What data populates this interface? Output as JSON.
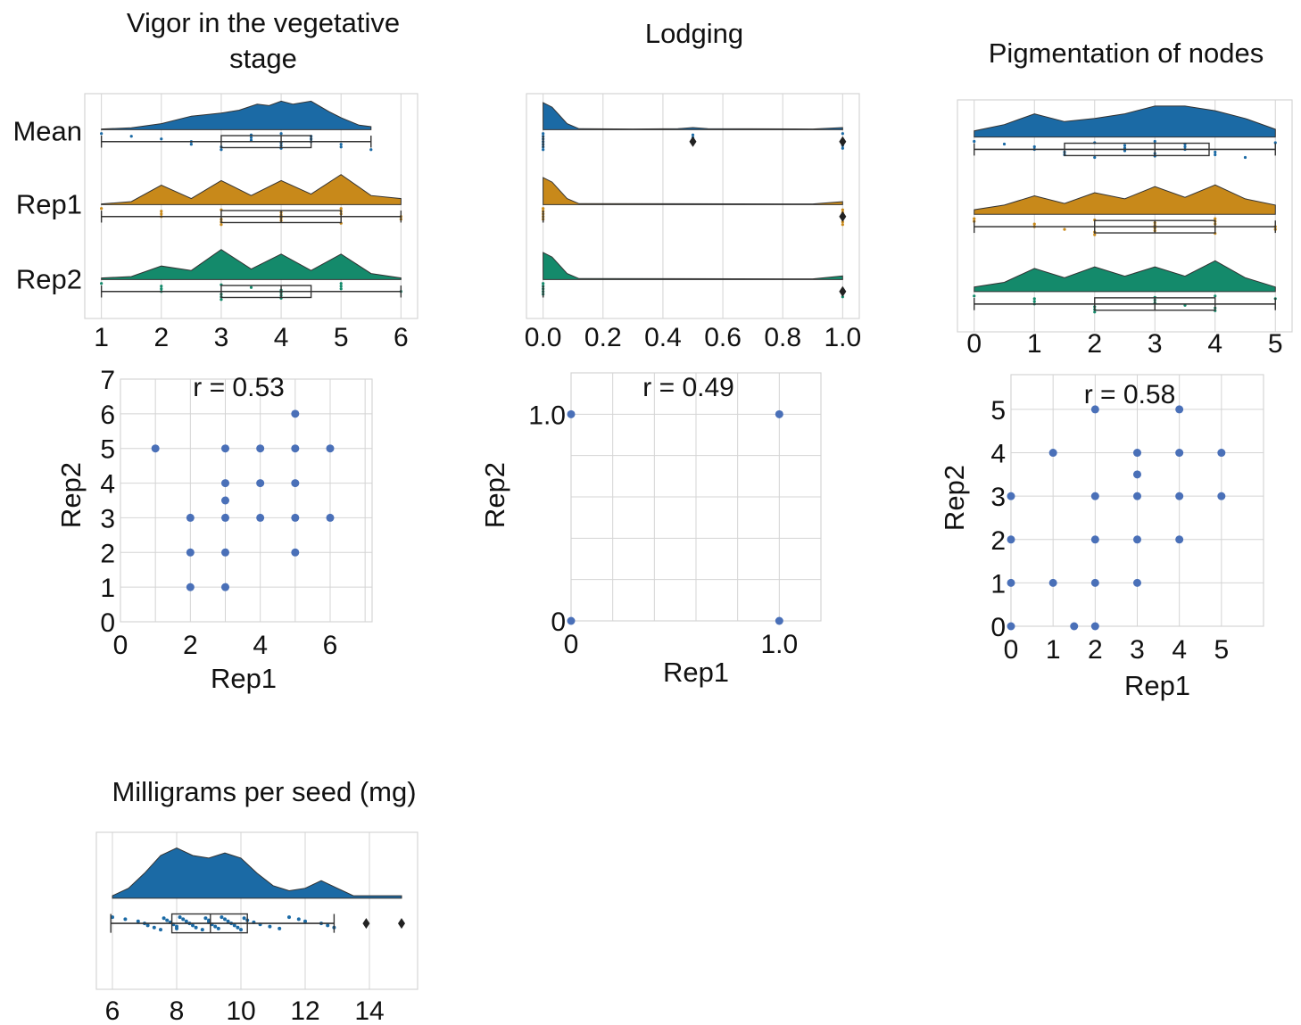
{
  "figure": {
    "category_labels": [
      "Mean",
      "Rep1",
      "Rep2"
    ]
  },
  "colors": {
    "mean": "#1b6aa5",
    "rep1": "#c8891a",
    "rep2": "#148a6b",
    "scatter": "#4a70b8",
    "grid": "#d4d4d4",
    "box": "#ffffff",
    "outlier": "#222222"
  },
  "chart_data": [
    {
      "type": "raincloud",
      "title_lines": [
        "Vigor in the vegetative",
        "stage"
      ],
      "xticks": [
        "1",
        "2",
        "3",
        "4",
        "5",
        "6"
      ],
      "xlim": [
        1,
        6
      ],
      "grid": true,
      "series": [
        {
          "name": "Mean",
          "color": "mean",
          "density": [
            [
              1,
              0.02
            ],
            [
              1.5,
              0.06
            ],
            [
              2,
              0.2
            ],
            [
              2.5,
              0.45
            ],
            [
              3,
              0.55
            ],
            [
              3.3,
              0.65
            ],
            [
              3.6,
              0.85
            ],
            [
              3.8,
              0.8
            ],
            [
              4,
              0.95
            ],
            [
              4.2,
              0.85
            ],
            [
              4.5,
              0.95
            ],
            [
              4.8,
              0.6
            ],
            [
              5,
              0.4
            ],
            [
              5.3,
              0.15
            ],
            [
              5.5,
              0.1
            ]
          ],
          "box": {
            "whisker_low": 1,
            "q1": 3,
            "median": 4,
            "q3": 4.5,
            "whisker_high": 5.5
          },
          "points": [
            1,
            1.5,
            2,
            2.5,
            2.5,
            3,
            3,
            3.5,
            3.5,
            3.5,
            4,
            4,
            4,
            4,
            4.5,
            4.5,
            4.5,
            5,
            5,
            5.5
          ],
          "outliers": []
        },
        {
          "name": "Rep1",
          "color": "rep1",
          "density": [
            [
              1,
              0.02
            ],
            [
              1.5,
              0.1
            ],
            [
              2,
              0.65
            ],
            [
              2.5,
              0.2
            ],
            [
              3,
              0.8
            ],
            [
              3.5,
              0.3
            ],
            [
              4,
              0.8
            ],
            [
              4.5,
              0.35
            ],
            [
              5,
              1
            ],
            [
              5.5,
              0.3
            ],
            [
              6,
              0.2
            ]
          ],
          "box": {
            "whisker_low": 1,
            "q1": 3,
            "median": 4,
            "q3": 5,
            "whisker_high": 6
          },
          "points": [
            1,
            2,
            2,
            2,
            3,
            3,
            3,
            3,
            4,
            4,
            4,
            4,
            5,
            5,
            5,
            5,
            6,
            6
          ],
          "outliers": []
        },
        {
          "name": "Rep2",
          "color": "rep2",
          "density": [
            [
              1,
              0.05
            ],
            [
              1.5,
              0.1
            ],
            [
              2,
              0.45
            ],
            [
              2.5,
              0.3
            ],
            [
              3,
              1
            ],
            [
              3.5,
              0.35
            ],
            [
              4,
              0.85
            ],
            [
              4.5,
              0.3
            ],
            [
              5,
              0.85
            ],
            [
              5.5,
              0.2
            ],
            [
              6,
              0.05
            ]
          ],
          "box": {
            "whisker_low": 1,
            "q1": 3,
            "median": 4,
            "q3": 4.5,
            "whisker_high": 6
          },
          "points": [
            1,
            2,
            2,
            2,
            3,
            3,
            3,
            3,
            3.5,
            4,
            4,
            4,
            4,
            5,
            5,
            5,
            6
          ],
          "outliers": []
        }
      ]
    },
    {
      "type": "raincloud",
      "title_lines": [
        "Lodging"
      ],
      "xticks": [
        "0.0",
        "0.2",
        "0.4",
        "0.6",
        "0.8",
        "1.0"
      ],
      "xlim": [
        0,
        1
      ],
      "grid": true,
      "series": [
        {
          "name": "Mean",
          "color": "mean",
          "density": [
            [
              0,
              0.9
            ],
            [
              0.03,
              0.75
            ],
            [
              0.08,
              0.2
            ],
            [
              0.12,
              0.03
            ],
            [
              0.3,
              0.02
            ],
            [
              0.45,
              0.03
            ],
            [
              0.5,
              0.07
            ],
            [
              0.55,
              0.03
            ],
            [
              0.9,
              0.02
            ],
            [
              1,
              0.07
            ]
          ],
          "box": {
            "whisker_low": 0,
            "q1": 0,
            "median": 0,
            "q3": 0,
            "whisker_high": 0
          },
          "points": [
            0,
            0,
            0,
            0,
            0,
            0,
            0,
            0.5,
            0.5,
            0.5,
            0.5,
            1,
            1,
            1
          ],
          "outliers": [
            0.5,
            1
          ]
        },
        {
          "name": "Rep1",
          "color": "rep1",
          "density": [
            [
              0,
              0.9
            ],
            [
              0.03,
              0.75
            ],
            [
              0.08,
              0.2
            ],
            [
              0.12,
              0.03
            ],
            [
              0.9,
              0.02
            ],
            [
              1,
              0.1
            ]
          ],
          "box": {
            "whisker_low": 0,
            "q1": 0,
            "median": 0,
            "q3": 0,
            "whisker_high": 0
          },
          "points": [
            0,
            0,
            0,
            0,
            0,
            1,
            1,
            1,
            1
          ],
          "outliers": [
            1
          ]
        },
        {
          "name": "Rep2",
          "color": "rep2",
          "density": [
            [
              0,
              0.9
            ],
            [
              0.03,
              0.75
            ],
            [
              0.08,
              0.2
            ],
            [
              0.12,
              0.03
            ],
            [
              0.9,
              0.02
            ],
            [
              1,
              0.12
            ]
          ],
          "box": {
            "whisker_low": 0,
            "q1": 0,
            "median": 0,
            "q3": 0,
            "whisker_high": 0
          },
          "points": [
            0,
            0,
            0,
            0,
            0,
            1
          ],
          "outliers": [
            1
          ]
        }
      ]
    },
    {
      "type": "raincloud",
      "title_lines": [
        "Pigmentation of nodes"
      ],
      "xticks": [
        "0",
        "1",
        "2",
        "3",
        "4",
        "5"
      ],
      "xlim": [
        0,
        5
      ],
      "grid": true,
      "series": [
        {
          "name": "Mean",
          "color": "mean",
          "density": [
            [
              0,
              0.2
            ],
            [
              0.5,
              0.4
            ],
            [
              1,
              0.75
            ],
            [
              1.5,
              0.5
            ],
            [
              2,
              0.6
            ],
            [
              2.5,
              0.75
            ],
            [
              3,
              1
            ],
            [
              3.5,
              1
            ],
            [
              4,
              0.85
            ],
            [
              4.5,
              0.6
            ],
            [
              5,
              0.25
            ]
          ],
          "box": {
            "whisker_low": 0,
            "q1": 1.5,
            "median": 3,
            "q3": 3.9,
            "whisker_high": 5
          },
          "points": [
            0,
            0.5,
            1,
            1,
            1.5,
            1.5,
            2,
            2,
            2.5,
            2.5,
            2.5,
            3,
            3,
            3,
            3.5,
            3.5,
            3.5,
            4,
            4,
            4.5,
            5
          ],
          "outliers": []
        },
        {
          "name": "Rep1",
          "color": "rep1",
          "density": [
            [
              0,
              0.15
            ],
            [
              0.5,
              0.3
            ],
            [
              1,
              0.6
            ],
            [
              1.5,
              0.35
            ],
            [
              2,
              0.7
            ],
            [
              2.5,
              0.5
            ],
            [
              3,
              0.9
            ],
            [
              3.5,
              0.55
            ],
            [
              4,
              0.95
            ],
            [
              4.5,
              0.5
            ],
            [
              5,
              0.3
            ]
          ],
          "box": {
            "whisker_low": 0,
            "q1": 2,
            "median": 3,
            "q3": 4,
            "whisker_high": 5
          },
          "points": [
            0,
            0,
            1,
            1,
            1.5,
            2,
            2,
            2,
            3,
            3,
            3,
            3,
            4,
            4,
            4,
            4,
            5,
            5
          ],
          "outliers": []
        },
        {
          "name": "Rep2",
          "color": "rep2",
          "density": [
            [
              0,
              0.15
            ],
            [
              0.5,
              0.3
            ],
            [
              1,
              0.75
            ],
            [
              1.5,
              0.45
            ],
            [
              2,
              0.8
            ],
            [
              2.5,
              0.5
            ],
            [
              3,
              0.8
            ],
            [
              3.5,
              0.5
            ],
            [
              4,
              1
            ],
            [
              4.5,
              0.45
            ],
            [
              5,
              0.15
            ]
          ],
          "box": {
            "whisker_low": 0,
            "q1": 2,
            "median": 3,
            "q3": 4,
            "whisker_high": 5
          },
          "points": [
            0,
            1,
            1,
            1,
            2,
            2,
            2,
            3,
            3,
            3,
            3.5,
            4,
            4,
            4,
            5
          ],
          "outliers": []
        }
      ]
    },
    {
      "type": "scatter",
      "annotation": "r = 0.53",
      "xlabel": "Rep1",
      "ylabel": "Rep2",
      "xlim": [
        0,
        7.2
      ],
      "ylim": [
        0,
        7
      ],
      "xticks": [
        "0",
        "2",
        "4",
        "6"
      ],
      "xtick_values": [
        0,
        2,
        4,
        6
      ],
      "yticks": [
        "0",
        "1",
        "2",
        "3",
        "4",
        "5",
        "6",
        "7"
      ],
      "ytick_values": [
        0,
        1,
        2,
        3,
        4,
        5,
        6,
        7
      ],
      "grid_step": 1,
      "points": [
        [
          1,
          5
        ],
        [
          2,
          3
        ],
        [
          2,
          2
        ],
        [
          2,
          1
        ],
        [
          3,
          5
        ],
        [
          3,
          4
        ],
        [
          3,
          3.5
        ],
        [
          3,
          3
        ],
        [
          3,
          2
        ],
        [
          3,
          1
        ],
        [
          4,
          5
        ],
        [
          4,
          4
        ],
        [
          4,
          3
        ],
        [
          5,
          6
        ],
        [
          5,
          5
        ],
        [
          5,
          4
        ],
        [
          5,
          3
        ],
        [
          5,
          2
        ],
        [
          6,
          5
        ],
        [
          6,
          3
        ]
      ]
    },
    {
      "type": "scatter",
      "annotation": "r = 0.49",
      "xlabel": "Rep1",
      "ylabel": "Rep2",
      "xlim": [
        0,
        1.2
      ],
      "ylim": [
        0,
        1.2
      ],
      "xticks": [
        "0",
        "1.0"
      ],
      "xtick_values": [
        0,
        1
      ],
      "yticks": [
        "0",
        "1.0"
      ],
      "ytick_values": [
        0,
        1
      ],
      "grid_step": 0.2,
      "points": [
        [
          0,
          1
        ],
        [
          1,
          1
        ],
        [
          0,
          0
        ],
        [
          1,
          0
        ]
      ]
    },
    {
      "type": "scatter",
      "annotation": "r = 0.58",
      "xlabel": "Rep1",
      "ylabel": "Rep2",
      "xlim": [
        0,
        6
      ],
      "ylim": [
        0,
        5.8
      ],
      "xticks": [
        "0",
        "1",
        "2",
        "3",
        "4",
        "5"
      ],
      "xtick_values": [
        0,
        1,
        2,
        3,
        4,
        5
      ],
      "yticks": [
        "0",
        "1",
        "2",
        "3",
        "4",
        "5"
      ],
      "ytick_values": [
        0,
        1,
        2,
        3,
        4,
        5
      ],
      "grid_step": 1,
      "points": [
        [
          0,
          3
        ],
        [
          0,
          2
        ],
        [
          0,
          1
        ],
        [
          0,
          0
        ],
        [
          1,
          4
        ],
        [
          1,
          1
        ],
        [
          1.5,
          0
        ],
        [
          2,
          5
        ],
        [
          2,
          3
        ],
        [
          2,
          2
        ],
        [
          2,
          1
        ],
        [
          2,
          0
        ],
        [
          3,
          4
        ],
        [
          3,
          3.5
        ],
        [
          3,
          3
        ],
        [
          3,
          2
        ],
        [
          3,
          1
        ],
        [
          4,
          5
        ],
        [
          4,
          4
        ],
        [
          4,
          3
        ],
        [
          4,
          2
        ],
        [
          5,
          4
        ],
        [
          5,
          3
        ]
      ]
    },
    {
      "type": "raincloud",
      "title_lines": [
        "Milligrams per seed (mg)"
      ],
      "xticks": [
        "6",
        "8",
        "10",
        "12",
        "14"
      ],
      "xlim": [
        6,
        15
      ],
      "grid": true,
      "series": [
        {
          "name": "",
          "color": "mean",
          "density": [
            [
              6,
              0.05
            ],
            [
              6.5,
              0.2
            ],
            [
              7,
              0.5
            ],
            [
              7.5,
              0.85
            ],
            [
              8,
              1
            ],
            [
              8.5,
              0.85
            ],
            [
              9,
              0.8
            ],
            [
              9.5,
              0.9
            ],
            [
              10,
              0.8
            ],
            [
              10.5,
              0.5
            ],
            [
              11,
              0.25
            ],
            [
              11.5,
              0.15
            ],
            [
              12,
              0.2
            ],
            [
              12.5,
              0.35
            ],
            [
              13,
              0.2
            ],
            [
              13.5,
              0.05
            ],
            [
              14,
              0.05
            ],
            [
              14.5,
              0.05
            ],
            [
              15,
              0.05
            ]
          ],
          "box": {
            "whisker_low": 5.95,
            "q1": 7.85,
            "median": 9.05,
            "q3": 10.2,
            "whisker_high": 12.9
          },
          "points": [
            6,
            6.4,
            6.8,
            7,
            7.1,
            7.3,
            7.5,
            7.6,
            7.7,
            7.8,
            7.9,
            8,
            8,
            8.1,
            8.2,
            8.3,
            8.4,
            8.5,
            8.6,
            8.8,
            8.9,
            9,
            9,
            9.1,
            9.2,
            9.3,
            9.4,
            9.5,
            9.6,
            9.7,
            9.8,
            9.9,
            10,
            10.1,
            10.2,
            10.4,
            10.6,
            10.9,
            11.2,
            11.5,
            11.8,
            12,
            12.5,
            12.7,
            12.9
          ],
          "outliers": [
            13.9,
            15
          ]
        }
      ]
    }
  ]
}
